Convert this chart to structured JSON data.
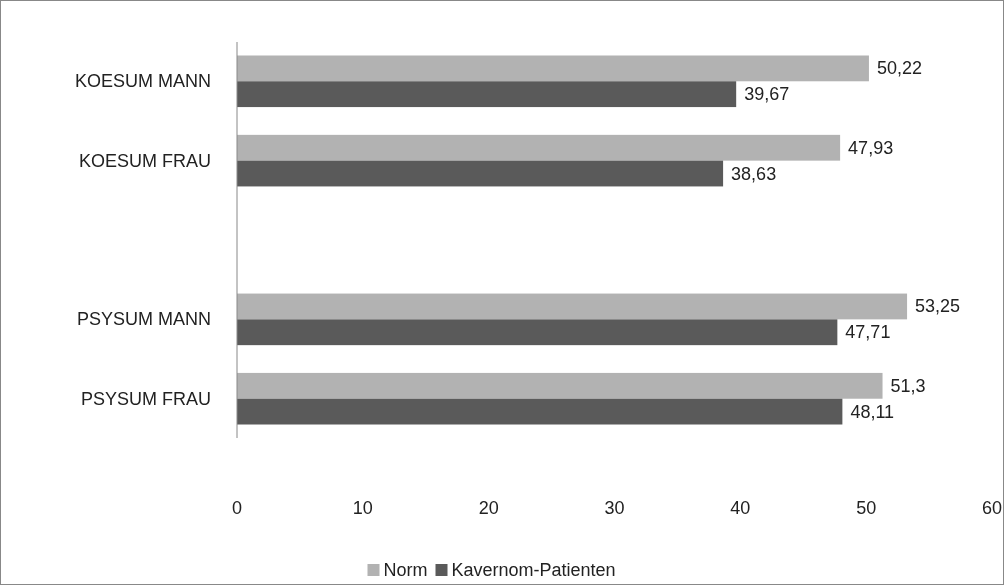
{
  "chart_data": {
    "type": "bar",
    "orientation": "horizontal",
    "categories": [
      "KOESUM MANN",
      "KOESUM FRAU",
      null,
      "PSYSUM MANN",
      "PSYSUM FRAU"
    ],
    "series": [
      {
        "name": "Norm",
        "color": "#b2b2b2",
        "values": [
          50.22,
          47.93,
          null,
          53.25,
          51.3
        ],
        "value_labels": [
          "50,22",
          "47,93",
          null,
          "53,25",
          "51,3"
        ]
      },
      {
        "name": "Kavernom-Patienten",
        "color": "#5a5a5a",
        "values": [
          39.67,
          38.63,
          null,
          47.71,
          48.11
        ],
        "value_labels": [
          "39,67",
          "38,63",
          null,
          "47,71",
          "48,11"
        ]
      }
    ],
    "xlim": [
      0,
      60
    ],
    "xticks": [
      0,
      10,
      20,
      30,
      40,
      50,
      60
    ],
    "grid": false,
    "legend": "bottom"
  }
}
